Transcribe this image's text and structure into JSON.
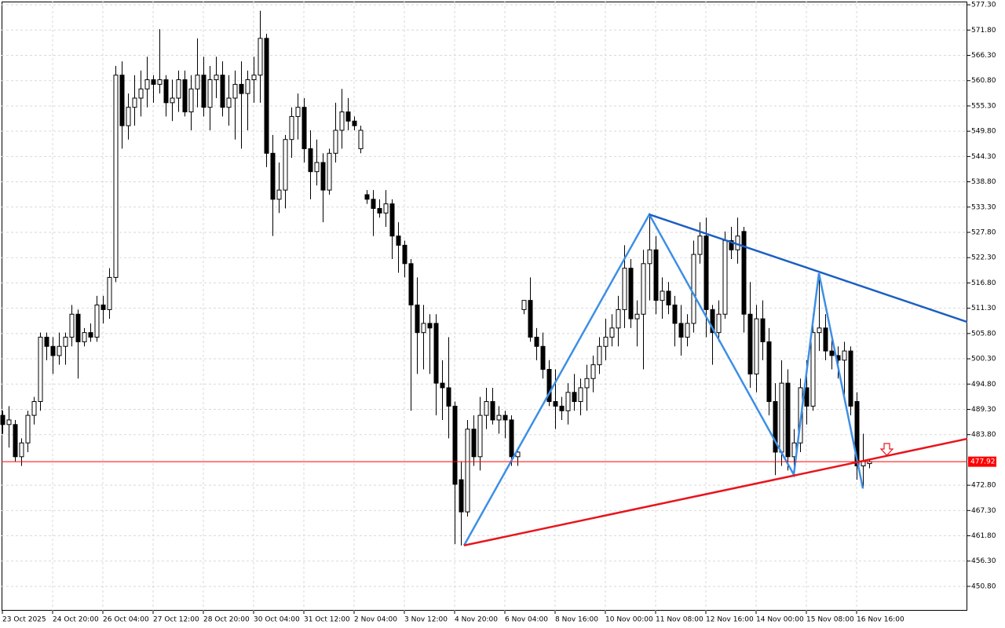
{
  "chart_data": {
    "type": "candlestick",
    "categories": [
      "23 Oct 2025",
      null,
      null,
      null,
      null,
      null,
      null,
      null,
      "24 Oct 20:00",
      null,
      null,
      null,
      null,
      null,
      null,
      null,
      "26 Oct 04:00",
      null,
      null,
      null,
      null,
      null,
      null,
      null,
      "27 Oct 12:00",
      null,
      null,
      null,
      null,
      null,
      null,
      null,
      "28 Oct 20:00",
      null,
      null,
      null,
      null,
      null,
      null,
      null,
      "30 Oct 04:00",
      null,
      null,
      null,
      null,
      null,
      null,
      null,
      "31 Oct 12:00",
      null,
      null,
      null,
      null,
      null,
      null,
      null,
      "2 Nov 04:00",
      null,
      null,
      null,
      null,
      null,
      null,
      null,
      "3 Nov 12:00",
      null,
      null,
      null,
      null,
      null,
      null,
      null,
      "4 Nov 20:00",
      null,
      null,
      null,
      null,
      null,
      null,
      null,
      "6 Nov 04:00",
      null,
      null,
      null,
      null,
      null,
      null,
      null,
      "8 Nov 16:00",
      null,
      null,
      null,
      null,
      null,
      null,
      null,
      "10 Nov 00:00",
      null,
      null,
      null,
      null,
      null,
      null,
      null,
      "11 Nov 08:00",
      null,
      null,
      null,
      null,
      null,
      null,
      null,
      "12 Nov 16:00",
      null,
      null,
      null,
      null,
      null,
      null,
      null,
      "14 Nov 00:00",
      null,
      null,
      null,
      null,
      null,
      null,
      null,
      "15 Nov 08:00",
      null,
      null,
      null,
      null,
      null,
      null,
      null,
      "16 Nov 16:00",
      null,
      null
    ],
    "open": [
      488,
      486,
      486,
      479,
      482,
      488,
      491,
      505,
      503,
      501,
      503,
      505,
      510,
      504,
      506,
      505,
      512,
      511,
      518,
      562,
      551,
      555,
      557,
      559,
      561,
      560,
      561,
      556,
      557,
      561,
      554,
      559,
      562,
      555,
      561,
      562,
      555,
      557,
      560,
      558,
      561,
      562,
      570,
      545,
      535,
      537,
      548,
      553,
      555,
      546,
      541,
      543,
      537,
      545,
      550,
      554,
      552,
      546,
      536,
      535,
      533,
      532,
      534,
      527,
      525,
      521,
      512,
      506,
      508,
      508,
      495,
      494,
      490,
      474,
      467,
      485,
      479,
      488,
      491,
      487,
      488,
      487,
      479,
      511,
      513,
      505,
      503,
      498,
      491,
      490,
      489,
      493,
      491,
      494,
      496,
      499,
      503,
      505,
      507,
      511,
      520,
      509,
      510,
      521,
      524,
      513,
      515,
      512,
      508,
      505,
      508,
      523,
      527,
      511,
      506,
      510,
      526,
      524,
      528,
      510,
      497,
      509,
      504,
      491,
      480,
      495,
      479,
      482,
      494,
      490,
      506,
      507,
      502,
      501,
      500,
      502,
      491,
      477,
      477.5
    ],
    "high": [
      489,
      490,
      487,
      483,
      489,
      492,
      506,
      506,
      505,
      506,
      506,
      512,
      511,
      507,
      508,
      514,
      514,
      520,
      564,
      565,
      558,
      562,
      563,
      566,
      562,
      572,
      562,
      561,
      563,
      563,
      562,
      570,
      566,
      564,
      566,
      565,
      562,
      563,
      565,
      563,
      566,
      576,
      571,
      549,
      543,
      549,
      555,
      558,
      557,
      550,
      548,
      545,
      546,
      556,
      559,
      557,
      553,
      551,
      537,
      537,
      535,
      537,
      535,
      530,
      526,
      522,
      518,
      512,
      510,
      510,
      500,
      505,
      491,
      478,
      487,
      488,
      492,
      494,
      494,
      490,
      489,
      488,
      481,
      513,
      518,
      507,
      506,
      500,
      498,
      492,
      495,
      497,
      496,
      499,
      501,
      505,
      509,
      510,
      514,
      525,
      522,
      513,
      524,
      531.7,
      527,
      518,
      517,
      514,
      512,
      510,
      526,
      530,
      531,
      512,
      513,
      528,
      529,
      531,
      529,
      517,
      512,
      513,
      507,
      495,
      500,
      498,
      485,
      496,
      500,
      510,
      518.9,
      510,
      505,
      503,
      504,
      503,
      493,
      484,
      478.5
    ],
    "low": [
      484,
      481,
      478,
      477,
      480,
      486,
      489,
      500,
      497,
      499,
      499,
      503,
      496,
      503,
      504,
      504,
      508,
      509,
      517,
      546,
      548,
      551,
      553,
      555,
      556,
      558,
      553,
      552,
      554,
      553,
      550,
      555,
      553,
      550,
      557,
      553,
      551,
      548,
      546,
      550,
      556,
      556,
      542,
      527,
      532,
      533,
      544,
      548,
      543,
      535,
      538,
      530,
      536,
      543,
      546,
      550,
      550,
      545,
      534,
      527,
      531,
      529,
      522,
      519,
      518,
      489,
      497,
      498,
      497,
      488,
      487,
      483,
      460,
      459.7,
      466,
      477,
      476,
      485,
      486,
      484,
      483,
      477,
      477,
      510,
      504,
      500,
      496,
      490,
      485,
      487,
      486,
      489,
      488,
      489,
      493,
      497,
      500,
      503,
      503,
      507,
      507,
      503,
      498,
      513,
      510,
      509,
      510,
      503,
      501,
      503,
      506,
      521,
      505,
      499,
      504,
      509,
      522,
      521,
      506,
      494,
      493,
      500,
      488,
      475,
      477,
      476,
      475.1,
      480,
      486,
      489,
      502,
      500,
      498,
      496,
      492,
      488,
      474,
      472.1,
      476.5
    ],
    "close": [
      486,
      487,
      479,
      482,
      488,
      491,
      505,
      503,
      501,
      503,
      505,
      510,
      504,
      506,
      505,
      512,
      511,
      518,
      562,
      551,
      555,
      557,
      559,
      561,
      560,
      561,
      556,
      557,
      561,
      554,
      559,
      562,
      555,
      561,
      562,
      555,
      557,
      560,
      558,
      561,
      562,
      570,
      545,
      535,
      537,
      548,
      553,
      555,
      546,
      541,
      543,
      537,
      545,
      550,
      554,
      552,
      551,
      550,
      535,
      533,
      532,
      534,
      527,
      525,
      521,
      512,
      506,
      508,
      507,
      495,
      494,
      490,
      473,
      467,
      485,
      479,
      488,
      491,
      487,
      488,
      487,
      479,
      480,
      513,
      505,
      503,
      498,
      491,
      490,
      489,
      493,
      491,
      494,
      496,
      499,
      503,
      505,
      507,
      511,
      520,
      509,
      510,
      521,
      524,
      513,
      515,
      512,
      508,
      505,
      508,
      523,
      527,
      511,
      506,
      510,
      526,
      524,
      527,
      510,
      497,
      509,
      504,
      491,
      480,
      495,
      479,
      482,
      494,
      490,
      506,
      507,
      502,
      501,
      500,
      502,
      490,
      477,
      478,
      477.92
    ],
    "up_color": "#ffffff",
    "down_color": "#000000",
    "ylim": [
      445.5,
      578.0
    ],
    "yticks": [
      {
        "value": 577.3,
        "label": "577.30"
      },
      {
        "value": 571.8,
        "label": "571.80"
      },
      {
        "value": 566.3,
        "label": "566.30"
      },
      {
        "value": 560.8,
        "label": "560.80"
      },
      {
        "value": 555.3,
        "label": "555.30"
      },
      {
        "value": 549.8,
        "label": "549.80"
      },
      {
        "value": 544.3,
        "label": "544.30"
      },
      {
        "value": 538.8,
        "label": "538.80"
      },
      {
        "value": 533.3,
        "label": "533.30"
      },
      {
        "value": 527.8,
        "label": "527.80"
      },
      {
        "value": 522.3,
        "label": "522.30"
      },
      {
        "value": 516.8,
        "label": "516.80"
      },
      {
        "value": 511.3,
        "label": "511.30"
      },
      {
        "value": 505.8,
        "label": "505.80"
      },
      {
        "value": 500.3,
        "label": "500.30"
      },
      {
        "value": 494.8,
        "label": "494.80"
      },
      {
        "value": 489.3,
        "label": "489.30"
      },
      {
        "value": 483.8,
        "label": "483.80"
      },
      {
        "value": 472.8,
        "label": "472.80"
      },
      {
        "value": 467.3,
        "label": "467.30"
      },
      {
        "value": 461.8,
        "label": "461.80"
      },
      {
        "value": 456.3,
        "label": "456.30"
      },
      {
        "value": 450.8,
        "label": "450.80"
      }
    ],
    "grid": true,
    "current_price": 477.92,
    "current_price_color": "#ff0000",
    "annotations": [
      {
        "color": "#3d8fe6",
        "values": [
          459.7,
          531.7,
          475.1,
          518.9,
          472.1
        ]
      },
      {
        "color": "#1c5fc4",
        "values": [
          531.7,
          508.3
        ]
      },
      {
        "color": "#e8141c",
        "values": [
          459.7,
          482.9
        ]
      }
    ]
  }
}
